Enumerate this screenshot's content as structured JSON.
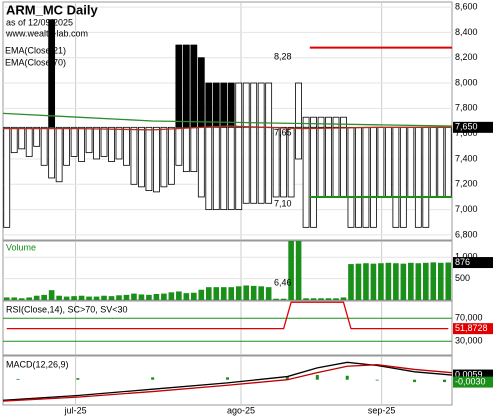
{
  "chart_data": [
    {
      "type": "box",
      "title": "ARM_MC Daily",
      "subtitle": "as of 12/09/2025",
      "source": "www.wealth-lab.com",
      "xlim": [
        0,
        60
      ],
      "ylim": [
        6760,
        8640
      ],
      "yticks": [
        {
          "value": 6800,
          "label": "6,800"
        },
        {
          "value": 7000,
          "label": "7,000"
        },
        {
          "value": 7200,
          "label": "7,200"
        },
        {
          "value": 7400,
          "label": "7,400"
        },
        {
          "value": 7600,
          "label": "7,600"
        },
        {
          "value": 7800,
          "label": "7,800"
        },
        {
          "value": 8000,
          "label": "8,000"
        },
        {
          "value": 8200,
          "label": "8,200"
        },
        {
          "value": 8400,
          "label": "8,400"
        },
        {
          "value": 8600,
          "label": "8,600"
        }
      ],
      "base": 7650,
      "fill_color": "#000000",
      "upper_filled": [
        null,
        null,
        null,
        null,
        null,
        null,
        8500,
        null,
        null,
        null,
        null,
        null,
        null,
        null,
        null,
        null,
        null,
        null,
        null,
        null,
        null,
        null,
        null,
        8300,
        8300,
        8300,
        8200,
        8000,
        8000,
        8000,
        8000,
        null,
        null,
        null,
        null,
        null,
        null,
        null,
        null,
        null,
        null,
        null,
        null,
        null,
        null,
        null,
        null,
        null,
        null,
        null,
        null,
        null,
        null,
        null,
        null,
        null,
        null,
        null,
        null,
        null
      ],
      "upper_hollow": [
        null,
        null,
        null,
        null,
        null,
        null,
        null,
        null,
        null,
        null,
        null,
        null,
        null,
        null,
        null,
        null,
        null,
        null,
        null,
        null,
        null,
        null,
        null,
        null,
        null,
        null,
        null,
        null,
        null,
        null,
        null,
        8000,
        8000,
        8000,
        8000,
        8000,
        null,
        null,
        null,
        8000,
        7730,
        7730,
        7730,
        7730,
        7730,
        7730,
        null,
        null,
        null,
        null,
        null,
        null,
        null,
        null,
        null,
        null,
        null,
        null,
        null,
        null
      ],
      "lower": [
        6860,
        7450,
        7480,
        7420,
        7500,
        7350,
        7250,
        7220,
        7350,
        7420,
        7380,
        7450,
        7400,
        7420,
        7380,
        7400,
        7350,
        7200,
        7180,
        7150,
        7140,
        7180,
        7200,
        7350,
        7300,
        7300,
        7100,
        7000,
        7000,
        7000,
        7000,
        7000,
        7050,
        7050,
        7050,
        7050,
        7100,
        7100,
        7100,
        7400,
        6860,
        6860,
        7100,
        7100,
        7100,
        7100,
        6860,
        6860,
        6860,
        6860,
        7100,
        7100,
        6860,
        6860,
        7100,
        6860,
        6860,
        7100,
        7100,
        7100
      ],
      "series": [
        {
          "name": "EMA(Close,21)",
          "color": "#b03020",
          "x": [
            0,
            10,
            20,
            30,
            40,
            50,
            60
          ],
          "values": [
            7640,
            7640,
            7630,
            7660,
            7640,
            7650,
            7650
          ]
        },
        {
          "name": "EMA(Close,70)",
          "color": "#2e8b2e",
          "x": [
            0,
            10,
            20,
            30,
            40,
            50,
            60
          ],
          "values": [
            7760,
            7730,
            7700,
            7690,
            7680,
            7670,
            7660
          ]
        }
      ],
      "levels": [
        {
          "value": 8280,
          "color": "#e00000",
          "x": [
            41,
            60
          ]
        },
        {
          "value": 7100,
          "color": "#1a8f1a",
          "x": [
            41,
            60
          ]
        }
      ],
      "annotations": [
        "8,28",
        "7,65",
        "7,10"
      ],
      "last": {
        "value": 7650,
        "label": "7,650"
      }
    },
    {
      "type": "bar",
      "title": "Volume",
      "color": "#1a8f1a",
      "xlim": [
        0,
        60
      ],
      "ylim": [
        0,
        1380
      ],
      "yticks": [
        500,
        {
          "value": 1000,
          "label": "1,000"
        }
      ],
      "values": [
        60,
        60,
        40,
        60,
        100,
        120,
        230,
        100,
        80,
        90,
        100,
        80,
        80,
        100,
        90,
        110,
        120,
        150,
        130,
        120,
        140,
        150,
        180,
        200,
        160,
        170,
        240,
        300,
        300,
        300,
        300,
        320,
        340,
        330,
        320,
        300,
        30,
        30,
        1380,
        1380,
        40,
        40,
        40,
        40,
        40,
        60,
        840,
        850,
        860,
        850,
        860,
        870,
        860,
        850,
        870,
        860,
        870,
        880,
        870,
        876
      ],
      "annotations": [
        "6,46"
      ],
      "last": {
        "value": 876,
        "label": "876"
      }
    },
    {
      "type": "line",
      "title": "RSI(Close,14), SC>70, SV<30",
      "xlim": [
        0,
        60
      ],
      "ylim": [
        6,
        100
      ],
      "tick_color": "#1a8f1a",
      "yticks": [
        {
          "value": 70,
          "label": "70,000"
        },
        {
          "value": 30,
          "label": "30,000"
        }
      ],
      "series": [
        {
          "color": "#e00000",
          "values": [
            51.8728,
            51.8728,
            51.8728,
            51.8728,
            51.8728,
            51.8728,
            51.8728,
            51.8728,
            51.8728,
            51.8728,
            51.8728,
            51.8728,
            51.8728,
            51.8728,
            51.8728,
            51.8728,
            51.8728,
            51.8728,
            51.8728,
            51.8728,
            51.8728,
            51.8728,
            51.8728,
            51.8728,
            51.8728,
            51.8728,
            51.8728,
            51.8728,
            51.8728,
            51.8728,
            51.8728,
            51.8728,
            51.8728,
            51.8728,
            51.8728,
            51.8728,
            51.8728,
            51.8728,
            97.8,
            97.8,
            97.8,
            97.8,
            97.8,
            97.8,
            97.8,
            97.8,
            51.8728,
            51.8728,
            51.8728,
            51.8728,
            51.8728,
            51.8728,
            51.8728,
            51.8728,
            51.8728,
            51.8728,
            51.8728,
            51.8728,
            51.8728,
            51.8728
          ]
        }
      ],
      "last": {
        "value": 51.8728,
        "label": "51,8728",
        "color": "#e00000"
      }
    },
    {
      "type": "line",
      "title": "MACD(12,26,9)",
      "xlim": [
        0,
        60
      ],
      "ylim": [
        -0.032,
        0.03
      ],
      "xticks": [
        {
          "value": 9.7,
          "label": "jul-25"
        },
        {
          "value": 31.8,
          "label": "ago-25"
        },
        {
          "value": 50.6,
          "label": "sep-25"
        }
      ],
      "series": [
        {
          "color": "#000000",
          "x": [
            0,
            10,
            20,
            30,
            38,
            42,
            46,
            50,
            55,
            60
          ],
          "values": [
            -0.026,
            -0.02,
            -0.012,
            -0.004,
            0.004,
            0.015,
            0.022,
            0.018,
            0.01,
            0.0059
          ]
        },
        {
          "color": "#c00000",
          "x": [
            0,
            10,
            20,
            30,
            38,
            42,
            46,
            50,
            55,
            60
          ],
          "values": [
            -0.027,
            -0.022,
            -0.015,
            -0.007,
            0,
            0.009,
            0.017,
            0.019,
            0.013,
            0.0089
          ]
        }
      ],
      "histogram": {
        "color": "#1a8f1a",
        "x": [
          2,
          10,
          20,
          30,
          38,
          42,
          46,
          50,
          55,
          59
        ],
        "values": [
          0.001,
          0.002,
          0.003,
          0.003,
          0.004,
          0.006,
          0.005,
          -0.001,
          -0.003,
          -0.003
        ]
      },
      "last": [
        {
          "value": 0.0059,
          "label": "0,0059",
          "color": "#000000"
        },
        {
          "value": -0.003,
          "label": "-0,0030",
          "color": "#1a8f1a"
        }
      ]
    }
  ]
}
